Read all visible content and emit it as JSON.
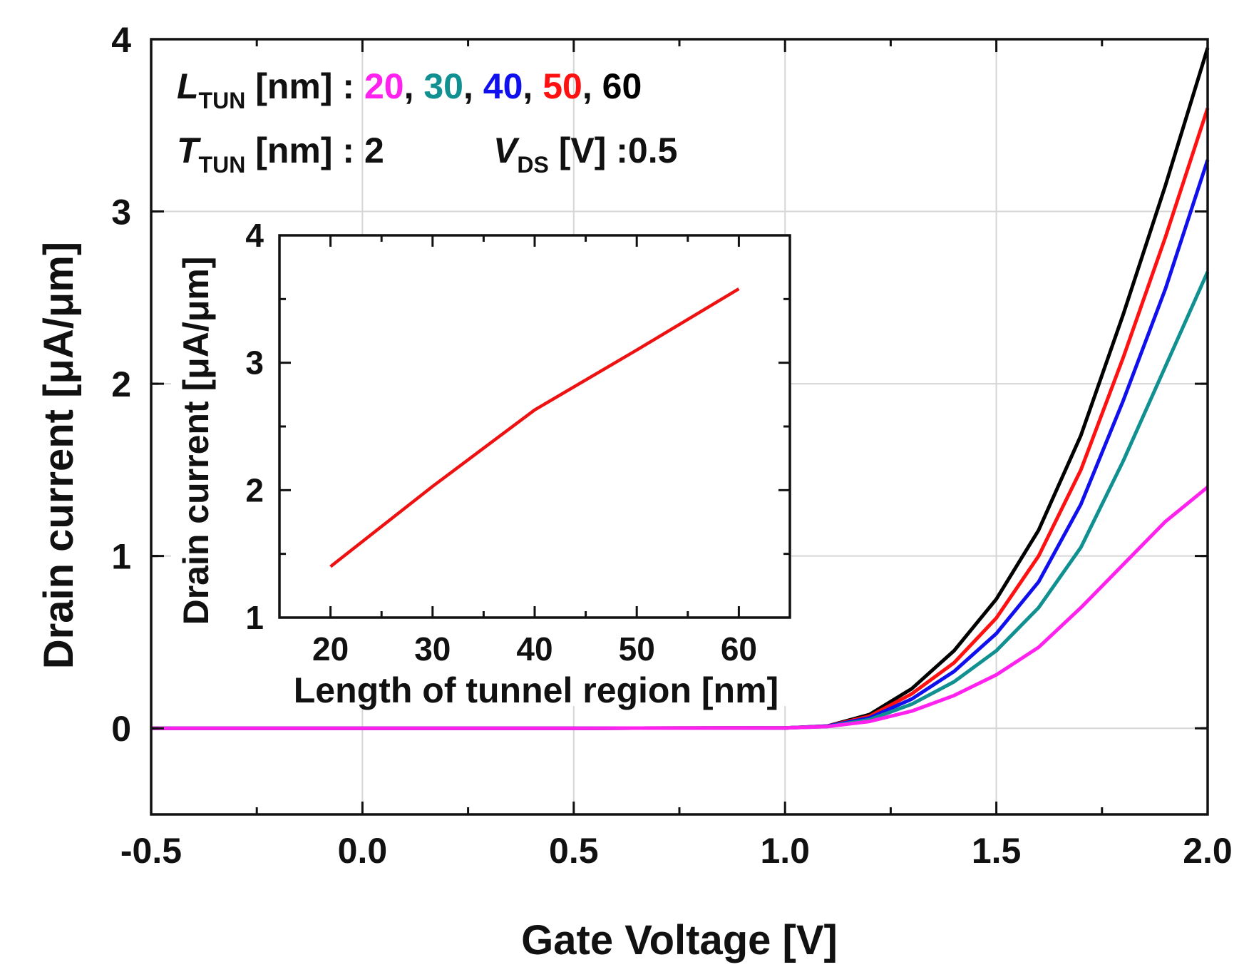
{
  "chart_data": [
    {
      "type": "line",
      "xlabel": "Gate Voltage [V]",
      "ylabel": "Drain current [μA/μm]",
      "xlim": [
        -0.5,
        2.0
      ],
      "ylim": [
        -0.5,
        4.0
      ],
      "xticks": [
        "-0.5",
        "0.0",
        "0.5",
        "1.0",
        "1.5",
        "2.0"
      ],
      "yticks": [
        "0",
        "1",
        "2",
        "3",
        "4"
      ],
      "grid": true,
      "x": [
        -0.5,
        0.0,
        0.5,
        1.0,
        1.1,
        1.2,
        1.3,
        1.4,
        1.5,
        1.6,
        1.7,
        1.8,
        1.9,
        2.0
      ],
      "series": [
        {
          "name": "20",
          "color": "#ff22ee",
          "values": [
            0,
            0,
            0,
            0.002,
            0.01,
            0.04,
            0.1,
            0.19,
            0.31,
            0.47,
            0.7,
            0.95,
            1.2,
            1.4
          ]
        },
        {
          "name": "30",
          "color": "#109090",
          "values": [
            0,
            0,
            0,
            0.002,
            0.01,
            0.05,
            0.14,
            0.27,
            0.45,
            0.7,
            1.05,
            1.55,
            2.1,
            2.65
          ]
        },
        {
          "name": "40",
          "color": "#1010ee",
          "values": [
            0,
            0,
            0,
            0.002,
            0.012,
            0.06,
            0.17,
            0.33,
            0.55,
            0.85,
            1.3,
            1.9,
            2.55,
            3.3
          ]
        },
        {
          "name": "50",
          "color": "#ff1111",
          "values": [
            0,
            0,
            0,
            0.002,
            0.012,
            0.07,
            0.2,
            0.38,
            0.64,
            1.0,
            1.5,
            2.15,
            2.85,
            3.6
          ]
        },
        {
          "name": "60",
          "color": "#000000",
          "values": [
            0,
            0,
            0,
            0.002,
            0.013,
            0.08,
            0.23,
            0.45,
            0.75,
            1.15,
            1.7,
            2.4,
            3.15,
            3.95
          ]
        }
      ],
      "annotations": {
        "l_main": "L",
        "l_sub": "TUN",
        "l_rest": " [nm] : ",
        "sep": ", ",
        "t_main": "T",
        "t_sub": "TUN",
        "t_rest": " [nm] : 2",
        "v_main": "V",
        "v_sub": "DS",
        "v_rest": " [V] :0.5"
      }
    },
    {
      "type": "line",
      "xlabel": "Length of tunnel region [nm]",
      "ylabel": "Drain current [μA/μm]",
      "xlim": [
        15,
        65
      ],
      "ylim": [
        1,
        4
      ],
      "xticks": [
        "20",
        "30",
        "40",
        "50",
        "60"
      ],
      "yticks": [
        "1",
        "2",
        "3",
        "4"
      ],
      "grid": false,
      "x": [
        20,
        30,
        40,
        50,
        60
      ],
      "series": [
        {
          "name": "Drain current",
          "color": "#ee1111",
          "values": [
            1.4,
            2.03,
            2.63,
            3.1,
            3.58
          ]
        }
      ]
    }
  ]
}
